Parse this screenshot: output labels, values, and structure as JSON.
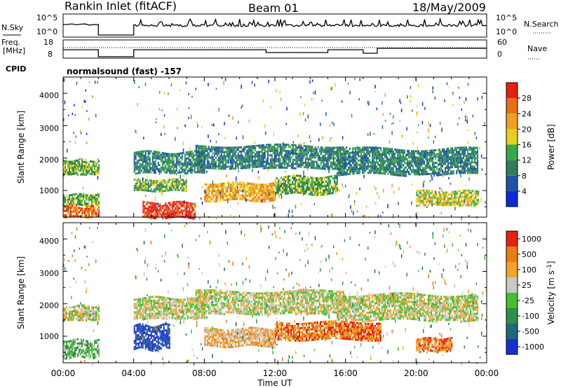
{
  "header": {
    "radar": "Rankin Inlet (fitACF)",
    "beam": "Beam 01",
    "date": "18/May/2009"
  },
  "nsky_panel": {
    "label_left": "N.Sky",
    "label_right": "N.Search",
    "left_ticks": [
      "10^5",
      "10^0"
    ],
    "right_ticks": [
      "10^5",
      "10^0"
    ]
  },
  "freq_panel": {
    "label_left_1": "Freq.",
    "label_left_2": "[MHz]",
    "label_right": "Nave",
    "left_ticks": [
      "18",
      "8"
    ],
    "right_ticks": [
      "60",
      "0"
    ]
  },
  "cpid": {
    "label": "CPID",
    "value": "normalsound (fast) -157"
  },
  "x_axis": {
    "title": "Time UT",
    "ticks": [
      "00:00",
      "04:00",
      "08:00",
      "12:00",
      "16:00",
      "20:00",
      "00:00"
    ]
  },
  "power_panel": {
    "ylabel": "Slant Range [km]",
    "yticks": [
      "1000",
      "2000",
      "3000",
      "4000"
    ],
    "colorbar_title": "Power [dB]",
    "colorbar_labels": [
      "4",
      "8",
      "12",
      "16",
      "20",
      "24",
      "28"
    ],
    "colors": [
      "#0a2bd8",
      "#1d52a8",
      "#2f7e5a",
      "#39a64a",
      "#e3d21c",
      "#f0a01c",
      "#ea6e1a",
      "#e51f12"
    ]
  },
  "velocity_panel": {
    "ylabel": "Slant Range [km]",
    "yticks": [
      "1000",
      "2000",
      "3000",
      "4000"
    ],
    "colorbar_title": "Velocity [m s^-1]",
    "colorbar_labels": [
      "1000",
      "500",
      "100",
      "25",
      "-25",
      "-100",
      "-500",
      "-1000"
    ],
    "colors": [
      "#1a2fcf",
      "#1d6a7a",
      "#2e8f4e",
      "#44c02c",
      "#c8c8c4",
      "#f2a32a",
      "#ea7c12",
      "#e52010"
    ]
  },
  "chart_data": {
    "type": "heatmap",
    "x": [
      "00:00",
      "04:00",
      "08:00",
      "12:00",
      "16:00",
      "20:00",
      "00:00"
    ],
    "xlabel": "Time UT",
    "ylabel": "Slant Range [km]",
    "ylim": [
      180,
      4500
    ],
    "series": [
      {
        "name": "Power [dB]",
        "scale": [
          4,
          8,
          12,
          16,
          20,
          24,
          28
        ],
        "bands": [
          {
            "t0": 0.0,
            "t1": 2.0,
            "r0": 1500,
            "r1": 1950,
            "level": 3
          },
          {
            "t0": 0.0,
            "t1": 2.0,
            "r0": 550,
            "r1": 900,
            "level": 3
          },
          {
            "t0": 0.0,
            "t1": 2.0,
            "r0": 200,
            "r1": 550,
            "level": 6
          },
          {
            "t0": 4.0,
            "t1": 8.0,
            "r0": 1550,
            "r1": 2200,
            "level": 2
          },
          {
            "t0": 4.0,
            "t1": 7.0,
            "r0": 1000,
            "r1": 1350,
            "level": 3
          },
          {
            "t0": 4.5,
            "t1": 7.5,
            "r0": 180,
            "r1": 650,
            "level": 7
          },
          {
            "t0": 7.5,
            "t1": 16.0,
            "r0": 1700,
            "r1": 2400,
            "level": 2
          },
          {
            "t0": 8.0,
            "t1": 12.0,
            "r0": 700,
            "r1": 1250,
            "level": 5
          },
          {
            "t0": 12.0,
            "t1": 15.5,
            "r0": 900,
            "r1": 1450,
            "level": 3
          },
          {
            "t0": 15.5,
            "t1": 23.5,
            "r0": 1500,
            "r1": 2300,
            "level": 2
          },
          {
            "t0": 20.0,
            "t1": 23.5,
            "r0": 550,
            "r1": 1000,
            "level": 4
          }
        ]
      },
      {
        "name": "Velocity [m s^-1]",
        "scale": [
          1000,
          500,
          100,
          25,
          -25,
          -100,
          -500,
          -1000
        ],
        "bands": [
          {
            "t0": 0.0,
            "t1": 2.0,
            "r0": 1500,
            "r1": 1950,
            "level": 4
          },
          {
            "t0": 0.0,
            "t1": 2.0,
            "r0": 350,
            "r1": 900,
            "level": 3
          },
          {
            "t0": 4.0,
            "t1": 8.0,
            "r0": 1550,
            "r1": 2200,
            "level": 4
          },
          {
            "t0": 4.0,
            "t1": 6.0,
            "r0": 600,
            "r1": 1350,
            "level": 0
          },
          {
            "t0": 7.5,
            "t1": 16.0,
            "r0": 1700,
            "r1": 2400,
            "level": 4
          },
          {
            "t0": 8.0,
            "t1": 12.0,
            "r0": 700,
            "r1": 1250,
            "level": 5
          },
          {
            "t0": 12.0,
            "t1": 18.0,
            "r0": 900,
            "r1": 1450,
            "level": 6
          },
          {
            "t0": 15.5,
            "t1": 23.5,
            "r0": 1500,
            "r1": 2300,
            "level": 4
          },
          {
            "t0": 20.0,
            "t1": 22.0,
            "r0": 550,
            "r1": 950,
            "level": 6
          }
        ]
      }
    ]
  }
}
